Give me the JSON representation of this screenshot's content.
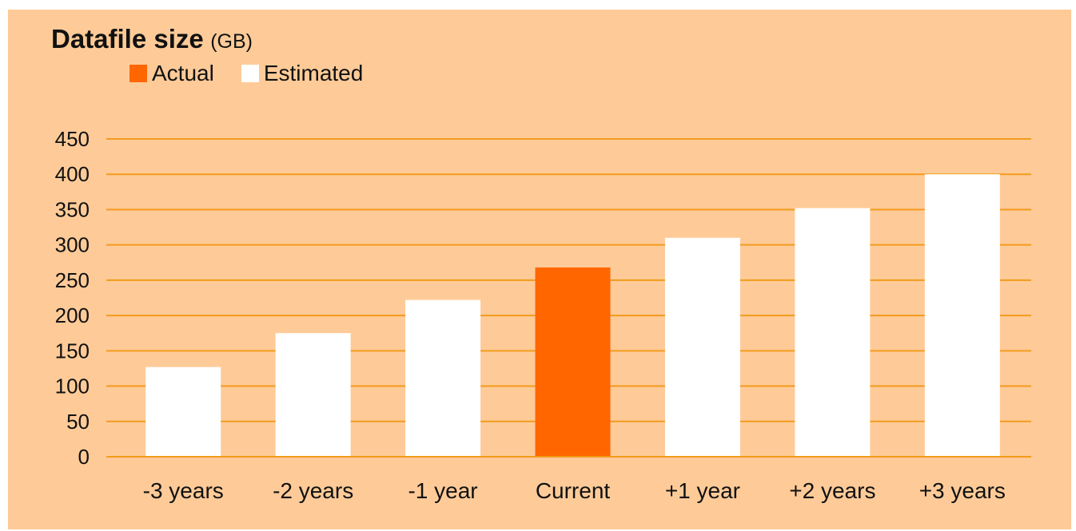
{
  "chart_data": {
    "type": "bar",
    "title": "Datafile size",
    "unit": "(GB)",
    "categories": [
      "-3 years",
      "-2 years",
      "-1 year",
      "Current",
      "+1 year",
      "+2 years",
      "+3 years"
    ],
    "values": [
      127,
      175,
      222,
      268,
      310,
      352,
      400
    ],
    "series_type": [
      "Estimated",
      "Estimated",
      "Estimated",
      "Actual",
      "Estimated",
      "Estimated",
      "Estimated"
    ],
    "legend": [
      {
        "name": "Actual",
        "color": "#ff6600"
      },
      {
        "name": "Estimated",
        "color": "#ffffff"
      }
    ],
    "ylim": [
      0,
      450
    ],
    "yticks": [
      0,
      50,
      100,
      150,
      200,
      250,
      300,
      350,
      400,
      450
    ],
    "grid": true,
    "legend_position": "top-left",
    "colors": {
      "background": "#fecb98",
      "gridline": "#f39b1c",
      "actual": "#ff6600",
      "estimated": "#ffffff"
    }
  }
}
